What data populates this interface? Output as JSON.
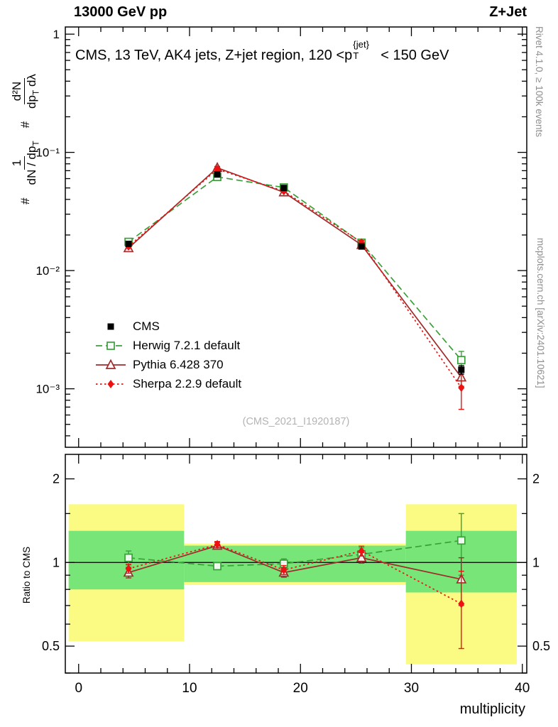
{
  "header": {
    "left": "13000 GeV pp",
    "right": "Z+Jet"
  },
  "title": {
    "prefix": "CMS, 13 TeV, AK4 jets, Z+jet region, 120 <p",
    "sup": "{jet}",
    "sub": "T",
    "suffix": "< 150 GeV"
  },
  "ylabel_main": {
    "hash1": "#",
    "frac1_num": "1",
    "frac1_den_pre": "dN / dp",
    "frac1_den_sub": "T",
    "hash2": "#",
    "frac2_num": "d²N",
    "frac2_den_pre": "dp",
    "frac2_den_sub": "T",
    "frac2_den_post": " dλ"
  },
  "ratio_ylabel": "Ratio to CMS",
  "xlabel": "multiplicity",
  "watermark": "(CMS_2021_I1920187)",
  "side_notes": {
    "rivet": "Rivet 4.1.0, ≥ 100k events",
    "mcplots": "mcplots.cern.ch [arXiv:2401.10621]"
  },
  "chart_data": {
    "type": "line",
    "title": "CMS, 13 TeV, AK4 jets, Z+jet region, 120 <pT{jet}< 150 GeV",
    "xlabel": "multiplicity",
    "yscale": "log",
    "ratio_yscale": "log",
    "x": [
      4.5,
      12.5,
      18.5,
      25.5,
      34.5
    ],
    "xlim": [
      -1.2,
      40.4
    ],
    "main_ylim_log": [
      0.00032,
      1.15
    ],
    "ratio_ylim_log": [
      0.4,
      2.45
    ],
    "axes": {
      "x_ticks": [
        {
          "v": 0,
          "label": "0"
        },
        {
          "v": 10,
          "label": "10"
        },
        {
          "v": 20,
          "label": "20"
        },
        {
          "v": 30,
          "label": "30"
        },
        {
          "v": 40,
          "label": "40"
        }
      ],
      "x_minor_step": 2,
      "main_y_ticks": [
        {
          "v": 1,
          "label": "1"
        },
        {
          "v": 0.1,
          "label": "10⁻¹"
        },
        {
          "v": 0.01,
          "label": "10⁻²"
        },
        {
          "v": 0.001,
          "label": "10⁻³"
        }
      ],
      "ratio_y_ticks": [
        {
          "v": 2,
          "label": "2"
        },
        {
          "v": 1,
          "label": "1"
        },
        {
          "v": 0.5,
          "label": "0.5"
        }
      ],
      "ratio_y_minor": [
        0.4,
        0.6,
        0.7,
        0.8,
        0.9,
        1.5
      ]
    },
    "colors": {
      "band_yellow": "#fbfb84",
      "band_green": "#77e577",
      "reference_line": "#000000"
    },
    "series": [
      {
        "id": "cms",
        "name": "CMS",
        "color": "#000000",
        "marker": "filled-square",
        "line": "none",
        "main_y": [
          0.0168,
          0.065,
          0.05,
          0.016,
          0.00145
        ],
        "main_err": [
          0.0008,
          0.002,
          0.0015,
          0.0008,
          0.00012
        ],
        "ratio_y": null,
        "ratio_err": null
      },
      {
        "id": "herwig",
        "name": "Herwig 7.2.1 default",
        "color": "#3aa03a",
        "marker": "open-square",
        "line": "dashed",
        "main_y": [
          0.0175,
          0.062,
          0.0505,
          0.0172,
          0.00175
        ],
        "main_err": [
          0.0007,
          0.0015,
          0.0013,
          0.0007,
          0.00032
        ],
        "ratio_y": [
          1.04,
          0.97,
          0.99,
          1.07,
          1.2
        ],
        "ratio_err": [
          0.06,
          0.025,
          0.04,
          0.06,
          0.3
        ]
      },
      {
        "id": "pythia",
        "name": "Pythia 6.428 370",
        "color": "#a02b2b",
        "marker": "open-triangle",
        "line": "solid",
        "main_y": [
          0.0155,
          0.074,
          0.046,
          0.0165,
          0.00125
        ],
        "main_err": [
          0.0006,
          0.002,
          0.0014,
          0.0007,
          0.0002
        ],
        "ratio_y": [
          0.92,
          1.15,
          0.92,
          1.04,
          0.87
        ],
        "ratio_err": [
          0.04,
          0.03,
          0.035,
          0.045,
          0.17
        ]
      },
      {
        "id": "sherpa",
        "name": "Sherpa 2.2.9 default",
        "color": "#ee1111",
        "marker": "filled-diamond",
        "line": "dotted",
        "main_y": [
          0.016,
          0.072,
          0.047,
          0.0173,
          0.00102
        ],
        "main_err": [
          0.0006,
          0.002,
          0.0014,
          0.0007,
          0.00035
        ],
        "ratio_y": [
          0.95,
          1.16,
          0.94,
          1.1,
          0.71
        ],
        "ratio_err": [
          0.035,
          0.03,
          0.035,
          0.045,
          0.22
        ]
      }
    ],
    "ratio_bands": [
      {
        "x0": -0.9,
        "x1": 9.5,
        "yellow": [
          0.52,
          1.62
        ],
        "green": [
          0.8,
          1.3
        ]
      },
      {
        "x0": 9.5,
        "x1": 29.5,
        "yellow": [
          0.83,
          1.17
        ],
        "green": [
          0.85,
          1.15
        ]
      },
      {
        "x0": 29.5,
        "x1": 39.5,
        "yellow": [
          0.43,
          1.62
        ],
        "green": [
          0.78,
          1.3
        ]
      }
    ]
  }
}
